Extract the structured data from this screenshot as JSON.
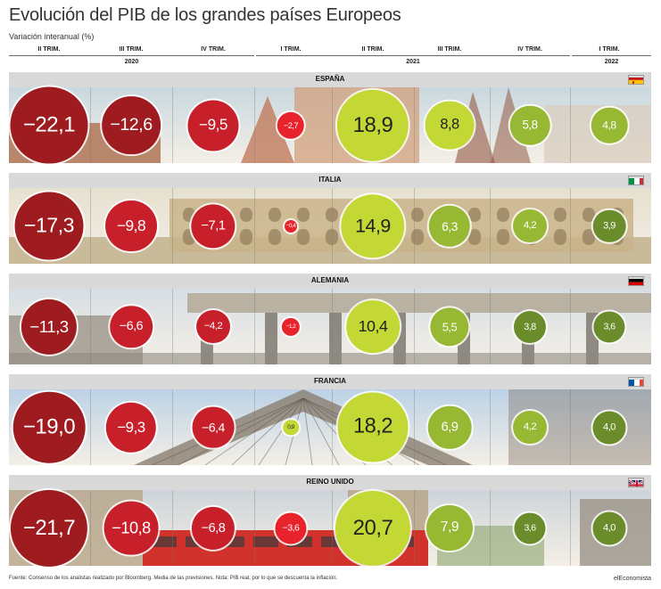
{
  "header": {
    "title": "Evolución del PIB de los grandes países Europeos",
    "subtitle": "Variación interanual (%)"
  },
  "chart_data": {
    "type": "bubble",
    "categories": [
      "II TRIM.",
      "III TRIM.",
      "IV TRIM.",
      "I TRIM.",
      "II TRIM.",
      "III TRIM.",
      "IV TRIM.",
      "I TRIM."
    ],
    "years": [
      {
        "label": "2020",
        "from": 0,
        "to": 2
      },
      {
        "label": "2021",
        "from": 3,
        "to": 6
      },
      {
        "label": "2022",
        "from": 7,
        "to": 7
      }
    ],
    "series": [
      {
        "name": "ESPAÑA",
        "flag": "es",
        "values": [
          -22.1,
          -12.6,
          -9.5,
          -2.7,
          18.9,
          8.8,
          5.8,
          4.8
        ],
        "labels": [
          "−22,1",
          "−12,6",
          "−9,5",
          "−2,7",
          "18,9",
          "8,8",
          "5,8",
          "4,8"
        ]
      },
      {
        "name": "ITALIA",
        "flag": "it",
        "values": [
          -17.3,
          -9.8,
          -7.1,
          -0.4,
          14.9,
          6.3,
          4.2,
          3.9
        ],
        "labels": [
          "−17,3",
          "−9,8",
          "−7,1",
          "−0,4",
          "14,9",
          "6,3",
          "4,2",
          "3,9"
        ]
      },
      {
        "name": "ALEMANIA",
        "flag": "de",
        "values": [
          -11.3,
          -6.6,
          -4.2,
          -1.2,
          10.4,
          5.5,
          3.8,
          3.6
        ],
        "labels": [
          "−11,3",
          "−6,6",
          "−4,2",
          "−1,2",
          "10,4",
          "5,5",
          "3,8",
          "3,6"
        ]
      },
      {
        "name": "FRANCIA",
        "flag": "fr",
        "values": [
          -19.0,
          -9.3,
          -6.4,
          0.9,
          18.2,
          6.9,
          4.2,
          4.0
        ],
        "labels": [
          "−19,0",
          "−9,3",
          "−6,4",
          "0,9",
          "18,2",
          "6,9",
          "4,2",
          "4,0"
        ]
      },
      {
        "name": "REINO UNIDO",
        "flag": "gb",
        "values": [
          -21.7,
          -10.8,
          -6.8,
          -3.6,
          20.7,
          7.9,
          3.6,
          4.0
        ],
        "labels": [
          "−21,7",
          "−10,8",
          "−6,8",
          "−3,6",
          "20,7",
          "7,9",
          "3,6",
          "4,0"
        ]
      }
    ],
    "colors": {
      "neg_dark": "#9e1b1f",
      "neg_mid": "#c8202a",
      "neg_bright": "#e8232b",
      "pos_light": "#c3d834",
      "pos_mid": "#97b832",
      "pos_dark": "#6a8c2a"
    }
  },
  "footer": {
    "source": "Fuente: Consenso de los analistas realizado por Bloomberg. Media de las previsiones. Nota: PIB real, por lo que se descuenta la inflación.",
    "brand": "elEconomista"
  }
}
